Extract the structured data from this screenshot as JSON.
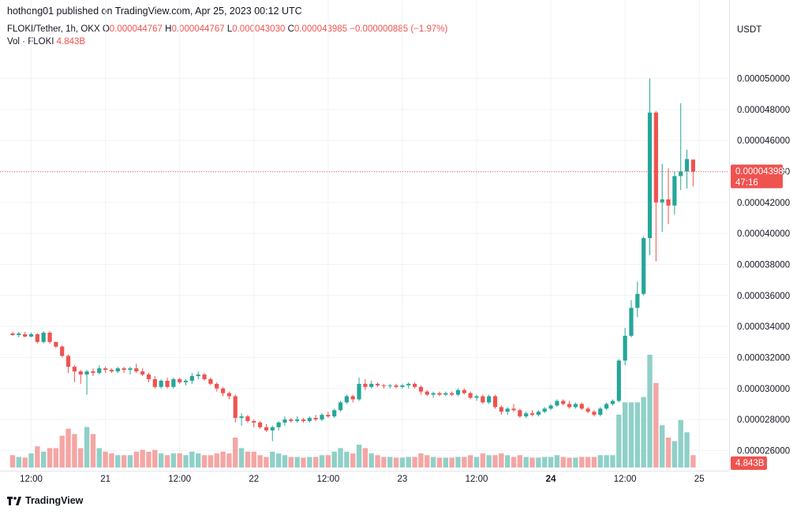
{
  "header": {
    "published": "hothong01 published on TradingView.com, Apr 25, 2023 00:12 UTC"
  },
  "legend": {
    "symbol": "FLOKI/Tether, 1h, OKX",
    "open_label": "O",
    "open": "0.000044767",
    "high_label": "H",
    "high": "0.000044767",
    "low_label": "L",
    "low": "0.000043030",
    "close_label": "C",
    "close": "0.000043985",
    "change": "−0.000000885 (−1.97%)",
    "vol_label": "Vol · FLOKI",
    "vol": "4.843B"
  },
  "footer": {
    "logo_text": "TradingView"
  },
  "colors": {
    "up": "#26a69a",
    "down": "#ef5350",
    "up_vol": "#8fd0c8",
    "down_vol": "#f4a6a4",
    "grid": "#f0f3fa",
    "price_label_bg": "#ef5350"
  },
  "chart_data": {
    "type": "candlestick",
    "symbol": "FLOKI/Tether",
    "interval": "1h",
    "exchange": "OKX",
    "currency": "USDT",
    "ylim": [
      2.47e-05,
      5.15e-05
    ],
    "y_ticks": [
      "0.000050000",
      "0.000048000",
      "0.000046000",
      "0.000044000",
      "0.000042000",
      "0.000040000",
      "0.000038000",
      "0.000036000",
      "0.000034000",
      "0.000032000",
      "0.000030000",
      "0.000028000",
      "0.000026000"
    ],
    "x_ticks": [
      {
        "label": "12:00",
        "i": 3,
        "bold": false
      },
      {
        "label": "21",
        "i": 15,
        "bold": false
      },
      {
        "label": "12:00",
        "i": 27,
        "bold": false
      },
      {
        "label": "22",
        "i": 39,
        "bold": false
      },
      {
        "label": "12:00",
        "i": 51,
        "bold": false
      },
      {
        "label": "23",
        "i": 63,
        "bold": false
      },
      {
        "label": "12:00",
        "i": 75,
        "bold": false
      },
      {
        "label": "24",
        "i": 87,
        "bold": true
      },
      {
        "label": "12:00",
        "i": 99,
        "bold": false
      },
      {
        "label": "25",
        "i": 111,
        "bold": false
      }
    ],
    "last_price": "0.000043985",
    "countdown": "47:16",
    "last_volume": "4.843B",
    "vol_max": 3.2,
    "candles": [
      [
        33.55,
        33.65,
        33.4,
        33.45,
        0.35
      ],
      [
        33.45,
        33.65,
        33.3,
        33.55,
        0.3
      ],
      [
        33.5,
        33.65,
        33.3,
        33.35,
        0.28
      ],
      [
        33.35,
        33.6,
        33.3,
        33.5,
        0.4
      ],
      [
        33.5,
        33.55,
        32.9,
        33.0,
        0.6
      ],
      [
        33.0,
        33.7,
        32.9,
        33.6,
        0.45
      ],
      [
        33.6,
        33.7,
        32.9,
        33.0,
        0.55
      ],
      [
        33.0,
        33.0,
        32.6,
        32.7,
        0.55
      ],
      [
        32.7,
        32.8,
        32.0,
        32.1,
        0.9
      ],
      [
        32.1,
        32.2,
        31.0,
        31.4,
        1.1
      ],
      [
        31.4,
        31.5,
        30.4,
        31.1,
        0.95
      ],
      [
        31.1,
        31.2,
        30.3,
        30.9,
        0.55
      ],
      [
        30.9,
        31.2,
        29.6,
        31.1,
        1.15
      ],
      [
        31.1,
        31.3,
        30.8,
        31.0,
        0.95
      ],
      [
        31.0,
        31.5,
        30.9,
        31.3,
        0.55
      ],
      [
        31.3,
        31.4,
        31.0,
        31.2,
        0.45
      ],
      [
        31.2,
        31.3,
        31.0,
        31.1,
        0.4
      ],
      [
        31.1,
        31.4,
        31.0,
        31.3,
        0.35
      ],
      [
        31.3,
        31.4,
        31.0,
        31.2,
        0.35
      ],
      [
        31.2,
        31.4,
        30.9,
        31.3,
        0.35
      ],
      [
        31.3,
        31.6,
        31.0,
        31.1,
        0.45
      ],
      [
        31.1,
        31.3,
        30.8,
        30.9,
        0.5
      ],
      [
        30.9,
        31.0,
        30.4,
        30.6,
        0.45
      ],
      [
        30.6,
        30.8,
        30.0,
        30.1,
        0.5
      ],
      [
        30.1,
        30.6,
        30.0,
        30.5,
        0.4
      ],
      [
        30.5,
        30.7,
        30.0,
        30.1,
        0.35
      ],
      [
        30.1,
        30.7,
        30.0,
        30.6,
        0.4
      ],
      [
        30.6,
        30.7,
        30.3,
        30.4,
        0.4
      ],
      [
        30.4,
        30.6,
        30.2,
        30.5,
        0.35
      ],
      [
        30.5,
        31.0,
        30.3,
        30.8,
        0.45
      ],
      [
        30.8,
        31.1,
        30.6,
        30.9,
        0.4
      ],
      [
        30.9,
        31.0,
        30.5,
        30.6,
        0.35
      ],
      [
        30.6,
        30.7,
        30.2,
        30.3,
        0.35
      ],
      [
        30.3,
        30.4,
        29.8,
        30.0,
        0.4
      ],
      [
        30.0,
        30.1,
        29.5,
        29.7,
        0.45
      ],
      [
        29.7,
        29.8,
        29.3,
        29.5,
        0.4
      ],
      [
        29.5,
        29.6,
        27.8,
        28.1,
        0.85
      ],
      [
        28.1,
        28.4,
        27.6,
        28.2,
        0.55
      ],
      [
        28.2,
        28.3,
        27.8,
        27.9,
        0.45
      ],
      [
        27.9,
        28.0,
        27.5,
        27.8,
        0.45
      ],
      [
        27.8,
        27.9,
        27.4,
        27.5,
        0.35
      ],
      [
        27.5,
        27.7,
        27.2,
        27.3,
        0.3
      ],
      [
        27.3,
        27.6,
        26.6,
        27.5,
        0.45
      ],
      [
        27.5,
        27.9,
        27.3,
        27.8,
        0.4
      ],
      [
        27.8,
        28.2,
        27.6,
        28.0,
        0.35
      ],
      [
        28.0,
        28.1,
        27.8,
        27.9,
        0.3
      ],
      [
        27.9,
        28.2,
        27.8,
        28.0,
        0.3
      ],
      [
        28.0,
        28.1,
        27.8,
        27.9,
        0.28
      ],
      [
        27.9,
        28.2,
        27.8,
        28.1,
        0.3
      ],
      [
        28.1,
        28.3,
        27.9,
        28.0,
        0.3
      ],
      [
        28.0,
        28.4,
        27.9,
        28.3,
        0.35
      ],
      [
        28.3,
        28.5,
        28.1,
        28.2,
        0.35
      ],
      [
        28.2,
        28.7,
        28.1,
        28.6,
        0.45
      ],
      [
        28.6,
        29.2,
        28.5,
        29.1,
        0.55
      ],
      [
        29.1,
        29.6,
        29.0,
        29.5,
        0.45
      ],
      [
        29.5,
        29.6,
        29.1,
        29.3,
        0.4
      ],
      [
        29.3,
        30.7,
        29.2,
        30.3,
        0.65
      ],
      [
        30.3,
        30.6,
        29.9,
        30.1,
        0.55
      ],
      [
        30.1,
        30.5,
        30.0,
        30.3,
        0.4
      ],
      [
        30.3,
        30.4,
        30.1,
        30.2,
        0.35
      ],
      [
        30.2,
        30.3,
        30.0,
        30.15,
        0.3
      ],
      [
        30.15,
        30.3,
        30.0,
        30.2,
        0.3
      ],
      [
        30.2,
        30.3,
        30.0,
        30.1,
        0.28
      ],
      [
        30.1,
        30.3,
        30.0,
        30.2,
        0.28
      ],
      [
        30.2,
        30.4,
        30.0,
        30.3,
        0.3
      ],
      [
        30.3,
        30.4,
        30.0,
        30.1,
        0.3
      ],
      [
        30.1,
        30.2,
        29.6,
        29.8,
        0.4
      ],
      [
        29.8,
        29.9,
        29.5,
        29.6,
        0.35
      ],
      [
        29.6,
        29.8,
        29.4,
        29.7,
        0.3
      ],
      [
        29.7,
        29.8,
        29.5,
        29.6,
        0.28
      ],
      [
        29.6,
        29.8,
        29.5,
        29.7,
        0.28
      ],
      [
        29.7,
        29.8,
        29.5,
        29.6,
        0.28
      ],
      [
        29.6,
        30.0,
        29.5,
        29.9,
        0.3
      ],
      [
        29.9,
        30.0,
        29.6,
        29.7,
        0.3
      ],
      [
        29.7,
        29.8,
        29.3,
        29.4,
        0.35
      ],
      [
        29.4,
        29.6,
        29.2,
        29.5,
        0.3
      ],
      [
        29.5,
        29.6,
        29.0,
        29.1,
        0.4
      ],
      [
        29.1,
        29.6,
        29.0,
        29.5,
        0.35
      ],
      [
        29.5,
        29.6,
        28.7,
        28.8,
        0.35
      ],
      [
        28.8,
        28.9,
        28.3,
        28.5,
        0.4
      ],
      [
        28.5,
        28.8,
        28.3,
        28.7,
        0.35
      ],
      [
        28.7,
        29.0,
        28.5,
        28.6,
        0.3
      ],
      [
        28.6,
        28.7,
        28.1,
        28.2,
        0.35
      ],
      [
        28.2,
        28.5,
        28.1,
        28.4,
        0.3
      ],
      [
        28.4,
        28.6,
        28.2,
        28.3,
        0.28
      ],
      [
        28.3,
        28.6,
        28.2,
        28.5,
        0.28
      ],
      [
        28.5,
        28.8,
        28.4,
        28.7,
        0.3
      ],
      [
        28.7,
        29.0,
        28.6,
        28.9,
        0.3
      ],
      [
        28.9,
        29.3,
        28.8,
        29.2,
        0.35
      ],
      [
        29.2,
        29.3,
        28.9,
        29.0,
        0.3
      ],
      [
        29.0,
        29.2,
        28.7,
        28.8,
        0.28
      ],
      [
        28.8,
        29.1,
        28.7,
        29.0,
        0.28
      ],
      [
        29.0,
        29.1,
        28.6,
        28.7,
        0.3
      ],
      [
        28.7,
        28.8,
        28.4,
        28.5,
        0.3
      ],
      [
        28.5,
        28.6,
        28.2,
        28.3,
        0.3
      ],
      [
        28.3,
        28.8,
        28.2,
        28.7,
        0.35
      ],
      [
        28.7,
        29.1,
        28.6,
        29.0,
        0.35
      ],
      [
        29.0,
        29.3,
        28.9,
        29.2,
        0.35
      ],
      [
        29.2,
        31.9,
        29.1,
        31.8,
        1.5
      ],
      [
        31.8,
        33.9,
        31.5,
        33.4,
        1.85
      ],
      [
        33.4,
        35.7,
        33.3,
        35.2,
        1.85
      ],
      [
        35.2,
        36.9,
        34.6,
        36.1,
        1.85
      ],
      [
        36.1,
        39.8,
        36.0,
        39.7,
        2.0
      ],
      [
        39.7,
        50.0,
        38.6,
        47.8,
        3.2
      ],
      [
        47.8,
        47.9,
        38.2,
        42.0,
        2.4
      ],
      [
        42.0,
        44.5,
        40.1,
        42.2,
        1.2
      ],
      [
        42.2,
        44.2,
        40.6,
        41.8,
        0.85
      ],
      [
        41.8,
        44.0,
        41.2,
        43.7,
        0.75
      ],
      [
        43.7,
        48.4,
        42.8,
        44.0,
        1.35
      ],
      [
        44.0,
        45.4,
        42.9,
        44.8,
        1.0
      ],
      [
        44.767,
        44.767,
        43.03,
        43.985,
        0.35
      ]
    ]
  }
}
